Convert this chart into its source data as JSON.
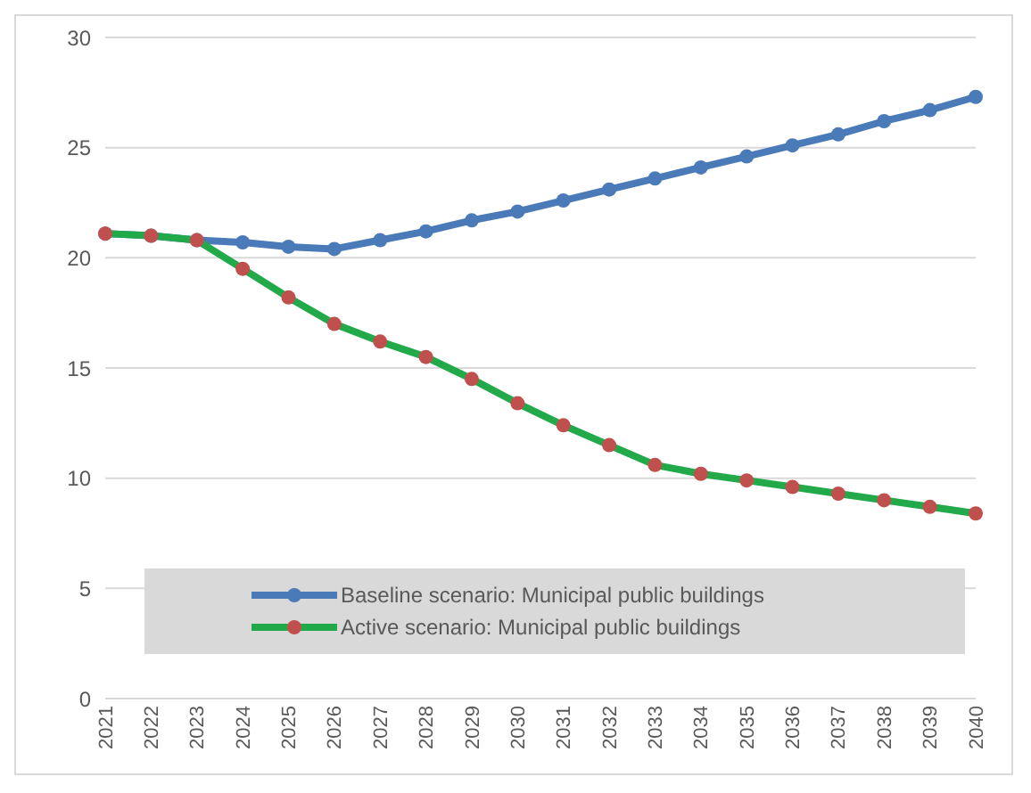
{
  "chart_data": {
    "type": "line",
    "categories": [
      "2021",
      "2022",
      "2023",
      "2024",
      "2025",
      "2026",
      "2027",
      "2028",
      "2029",
      "2030",
      "2031",
      "2032",
      "2033",
      "2034",
      "2035",
      "2036",
      "2037",
      "2038",
      "2039",
      "2040"
    ],
    "series": [
      {
        "name": "Baseline scenario: Municipal public buildings",
        "color": "#4a7ab8",
        "values": [
          21.1,
          21.0,
          20.8,
          20.7,
          20.5,
          20.4,
          20.8,
          21.2,
          21.7,
          22.1,
          22.6,
          23.1,
          23.6,
          24.1,
          24.6,
          25.1,
          25.6,
          26.2,
          26.7,
          27.3
        ]
      },
      {
        "name": "Active scenario: Municipal public buildings",
        "color": "#22a94a",
        "colors": [
          "#c0504d",
          "#c0504d",
          "#c0504d",
          "#c0504d",
          "#c0504d",
          "#c0504d",
          "#c0504d",
          "#c0504d",
          "#c0504d",
          "#c0504d",
          "#c0504d",
          "#c0504d",
          "#c0504d",
          "#c0504d",
          "#c0504d",
          "#c0504d",
          "#c0504d",
          "#c0504d",
          "#c0504d",
          "#c0504d"
        ],
        "values": [
          21.1,
          21.0,
          20.8,
          19.5,
          18.2,
          17.0,
          16.2,
          15.5,
          14.5,
          13.4,
          12.4,
          11.5,
          10.6,
          10.2,
          9.9,
          9.6,
          9.3,
          9.0,
          8.7,
          8.4
        ]
      }
    ],
    "ylim": [
      0,
      30
    ],
    "yticks": [
      0,
      5,
      10,
      15,
      20,
      25,
      30
    ],
    "grid": "y",
    "legend": "bottom",
    "marker": "circle",
    "line_style": "solid"
  }
}
